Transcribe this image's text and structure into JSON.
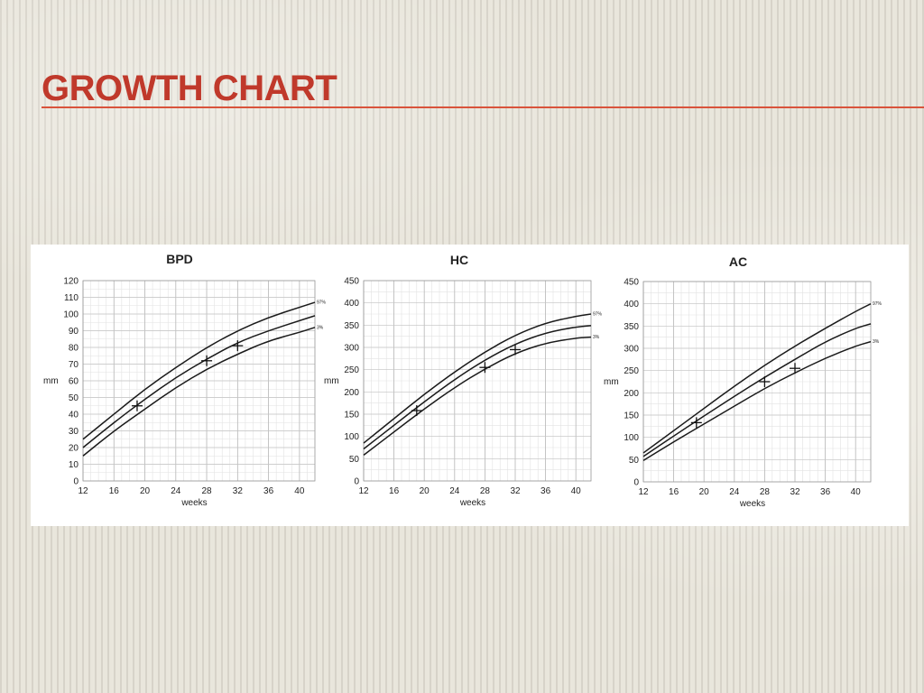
{
  "slide": {
    "title": "Growth chart"
  },
  "chart_data": [
    {
      "type": "line",
      "title": "BPD",
      "xlabel": "weeks",
      "ylabel": "mm",
      "xlim": [
        12,
        42
      ],
      "ylim": [
        0,
        120
      ],
      "x_ticks": [
        12,
        16,
        20,
        24,
        28,
        32,
        36,
        40
      ],
      "y_ticks": [
        0,
        10,
        20,
        30,
        40,
        50,
        60,
        70,
        80,
        90,
        100,
        110,
        120
      ],
      "grid": true,
      "x": [
        12,
        16,
        20,
        24,
        28,
        32,
        36,
        40,
        42
      ],
      "series": [
        {
          "name": "97%",
          "values": [
            25,
            40,
            55,
            68,
            80,
            90,
            98,
            104,
            107
          ]
        },
        {
          "name": "",
          "values": [
            20,
            35,
            49,
            62,
            73,
            83,
            90,
            96,
            99
          ]
        },
        {
          "name": "3%",
          "values": [
            15,
            30,
            43,
            56,
            67,
            76,
            84,
            89,
            92
          ]
        }
      ],
      "measurements": [
        {
          "x": 19,
          "y": 45
        },
        {
          "x": 28,
          "y": 72
        },
        {
          "x": 32,
          "y": 81
        }
      ]
    },
    {
      "type": "line",
      "title": "HC",
      "xlabel": "weeks",
      "ylabel": "mm",
      "xlim": [
        12,
        42
      ],
      "ylim": [
        0,
        450
      ],
      "x_ticks": [
        12,
        16,
        20,
        24,
        28,
        32,
        36,
        40
      ],
      "y_ticks": [
        0,
        50,
        100,
        150,
        200,
        250,
        300,
        350,
        400,
        450
      ],
      "grid": true,
      "x": [
        12,
        16,
        20,
        24,
        28,
        32,
        36,
        40,
        42
      ],
      "series": [
        {
          "name": "97%",
          "values": [
            85,
            140,
            195,
            245,
            290,
            328,
            355,
            370,
            375
          ]
        },
        {
          "name": "",
          "values": [
            72,
            125,
            178,
            228,
            272,
            308,
            333,
            346,
            349
          ]
        },
        {
          "name": "3%",
          "values": [
            58,
            110,
            162,
            210,
            252,
            287,
            310,
            321,
            323
          ]
        }
      ],
      "measurements": [
        {
          "x": 19,
          "y": 158
        },
        {
          "x": 28,
          "y": 255
        },
        {
          "x": 32,
          "y": 295
        }
      ]
    },
    {
      "type": "line",
      "title": "AC",
      "xlabel": "weeks",
      "ylabel": "mm",
      "xlim": [
        12,
        42
      ],
      "ylim": [
        0,
        450
      ],
      "x_ticks": [
        12,
        16,
        20,
        24,
        28,
        32,
        36,
        40
      ],
      "y_ticks": [
        0,
        50,
        100,
        150,
        200,
        250,
        300,
        350,
        400,
        450
      ],
      "grid": true,
      "x": [
        12,
        16,
        20,
        24,
        28,
        32,
        36,
        40,
        42
      ],
      "series": [
        {
          "name": "97%",
          "values": [
            65,
            115,
            165,
            215,
            262,
            305,
            345,
            383,
            400
          ]
        },
        {
          "name": "",
          "values": [
            57,
            103,
            148,
            192,
            235,
            275,
            315,
            345,
            355
          ]
        },
        {
          "name": "3%",
          "values": [
            48,
            90,
            130,
            170,
            210,
            245,
            278,
            305,
            315
          ]
        }
      ],
      "measurements": [
        {
          "x": 19,
          "y": 133
        },
        {
          "x": 28,
          "y": 225
        },
        {
          "x": 32,
          "y": 255
        }
      ]
    }
  ]
}
